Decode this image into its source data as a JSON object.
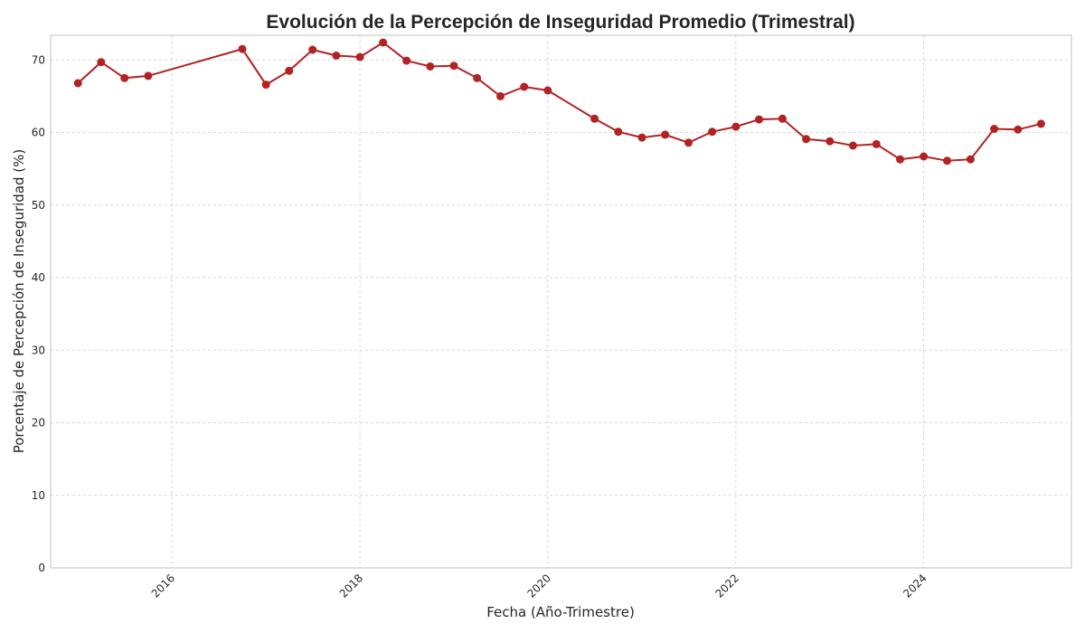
{
  "chart_data": {
    "type": "line",
    "title": "Evolución de la Percepción de Inseguridad Promedio (Trimestral)",
    "xlabel": "Fecha (Año-Trimestre)",
    "ylabel": "Porcentaje de Percepción de Inseguridad (%)",
    "ylim": [
      0,
      73.4
    ],
    "xlim": [
      "2014-09-17",
      "2025-07-28"
    ],
    "yticks": [
      0,
      10,
      20,
      30,
      40,
      50,
      60,
      70
    ],
    "xticks": [
      "2016",
      "2018",
      "2020",
      "2022",
      "2024"
    ],
    "grid": true,
    "color": "#b22222",
    "series": [
      {
        "x": [
          "2015-01-01",
          "2015-04-01",
          "2015-07-01",
          "2015-10-01",
          "2016-10-01",
          "2017-01-01",
          "2017-04-01",
          "2017-07-01",
          "2017-10-01",
          "2018-01-01",
          "2018-04-01",
          "2018-07-01",
          "2018-10-01",
          "2019-01-01",
          "2019-04-01",
          "2019-07-01",
          "2019-10-01",
          "2020-01-01",
          "2020-07-01",
          "2020-10-01",
          "2021-01-01",
          "2021-04-01",
          "2021-07-01",
          "2021-10-01",
          "2022-01-01",
          "2022-04-01",
          "2022-07-01",
          "2022-10-01",
          "2023-01-01",
          "2023-04-01",
          "2023-07-01",
          "2023-10-01",
          "2024-01-01",
          "2024-04-01",
          "2024-07-01",
          "2024-10-01",
          "2025-01-01",
          "2025-04-01"
        ],
        "values": [
          66.8,
          69.7,
          67.5,
          67.8,
          71.5,
          66.6,
          68.5,
          71.4,
          70.6,
          70.4,
          72.4,
          69.9,
          69.1,
          69.2,
          67.5,
          65.0,
          66.3,
          65.8,
          61.9,
          60.1,
          59.3,
          59.7,
          58.6,
          60.1,
          60.8,
          61.8,
          61.9,
          59.1,
          58.8,
          58.2,
          58.4,
          56.3,
          56.7,
          56.1,
          56.3,
          60.5,
          60.4,
          61.2
        ]
      }
    ]
  }
}
